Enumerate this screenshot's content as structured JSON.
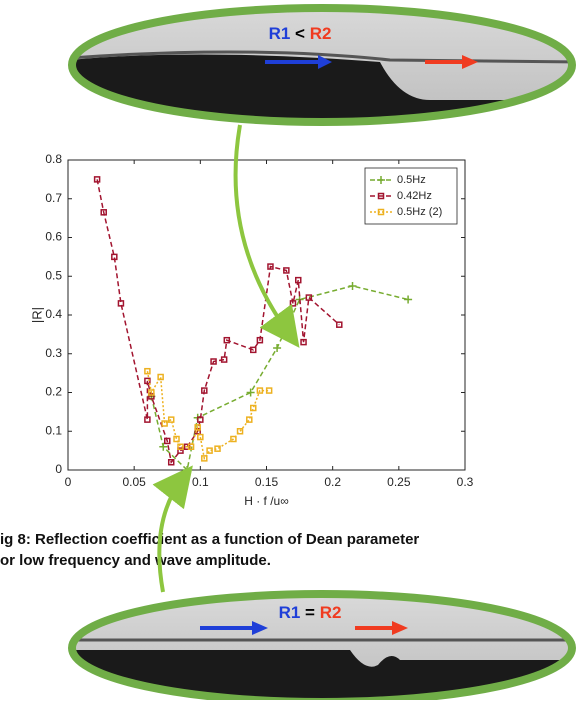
{
  "chart_data": {
    "type": "line",
    "xlabel": "H · f /u∞",
    "ylabel": "|R|",
    "xlim": [
      0,
      0.3
    ],
    "ylim": [
      0,
      0.8
    ],
    "xticks": [
      0,
      0.05,
      0.1,
      0.15,
      0.2,
      0.25,
      0.3
    ],
    "yticks": [
      0,
      0.1,
      0.2,
      0.3,
      0.4,
      0.5,
      0.6,
      0.7,
      0.8
    ],
    "legend": "upper right",
    "series": [
      {
        "name": "0.5Hz",
        "color": "#77ac30",
        "marker": "plus",
        "x": [
          0.063,
          0.072,
          0.09,
          0.098,
          0.138,
          0.158,
          0.175,
          0.215,
          0.257
        ],
        "values": [
          0.19,
          0.06,
          0.0,
          0.135,
          0.2,
          0.315,
          0.44,
          0.475,
          0.44
        ]
      },
      {
        "name": "0.42Hz",
        "color": "#a2142f",
        "marker": "square",
        "x": [
          0.022,
          0.027,
          0.035,
          0.04,
          0.06,
          0.06,
          0.063,
          0.075,
          0.078,
          0.085,
          0.09,
          0.098,
          0.1,
          0.103,
          0.11,
          0.118,
          0.12,
          0.14,
          0.145,
          0.153,
          0.165,
          0.17,
          0.174,
          0.178,
          0.182,
          0.205
        ],
        "values": [
          0.75,
          0.665,
          0.55,
          0.43,
          0.13,
          0.23,
          0.19,
          0.075,
          0.02,
          0.05,
          0.06,
          0.1,
          0.13,
          0.205,
          0.28,
          0.285,
          0.335,
          0.31,
          0.335,
          0.525,
          0.515,
          0.43,
          0.49,
          0.33,
          0.445,
          0.375
        ]
      },
      {
        "name": "0.5Hz (2)",
        "color": "#edb120",
        "marker": "square",
        "x": [
          0.06,
          0.063,
          0.07,
          0.073,
          0.078,
          0.082,
          0.085,
          0.093,
          0.098,
          0.1,
          0.103,
          0.107,
          0.113,
          0.125,
          0.13,
          0.137,
          0.14,
          0.145,
          0.152
        ],
        "values": [
          0.255,
          0.2,
          0.24,
          0.12,
          0.13,
          0.08,
          0.06,
          0.06,
          0.11,
          0.085,
          0.03,
          0.05,
          0.055,
          0.08,
          0.1,
          0.13,
          0.16,
          0.205,
          0.205
        ]
      }
    ],
    "annotations": [
      {
        "r1": "R1",
        "op": "<",
        "r2": "R2"
      },
      {
        "r1": "R1",
        "op": "=",
        "r2": "R2"
      }
    ],
    "caption": [
      "ig 8: Reflection coefficient as a function of Dean parameter",
      "or low frequency and wave amplitude."
    ]
  }
}
